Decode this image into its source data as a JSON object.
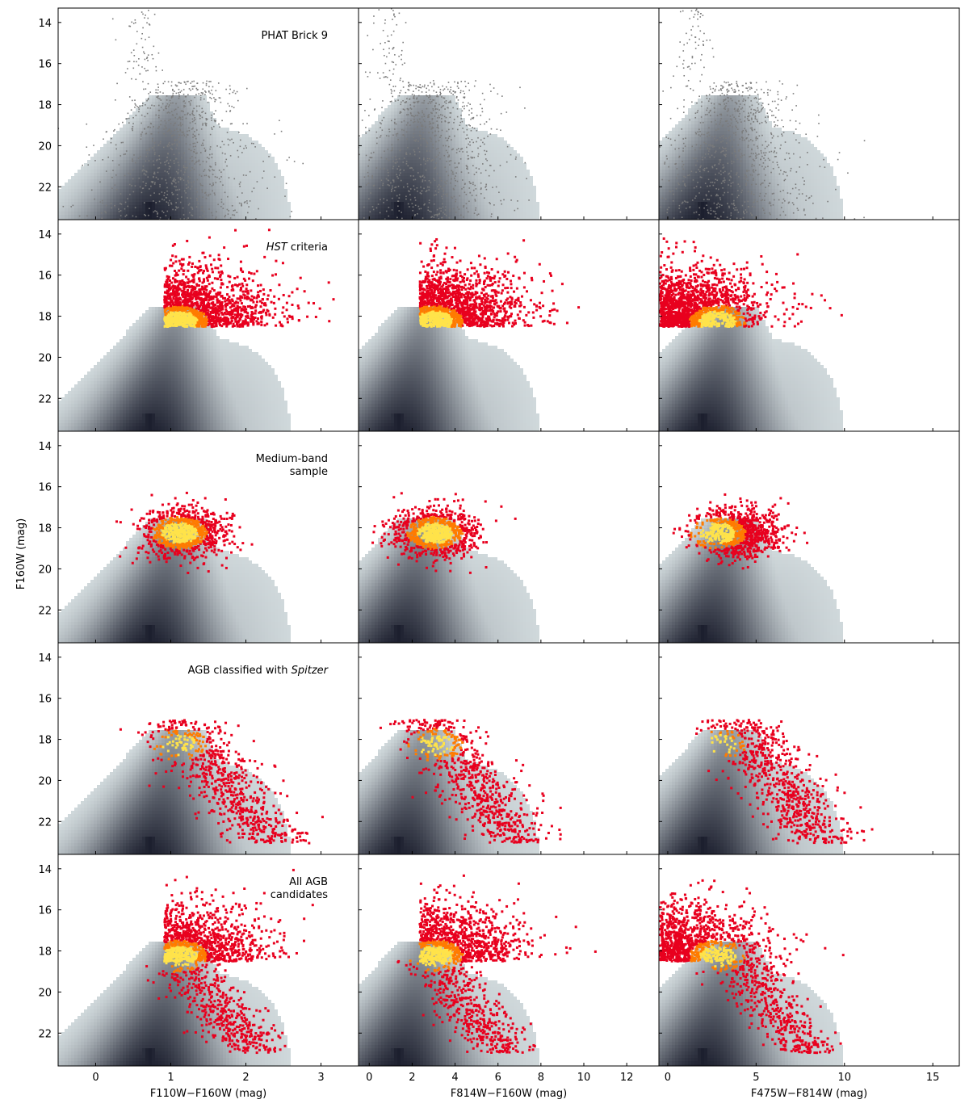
{
  "figure": {
    "ylabel": "F160W (mag)"
  },
  "y_axis": {
    "range": [
      23.6,
      13.3
    ],
    "inverted": true,
    "ticks": [
      14,
      16,
      18,
      20,
      22
    ],
    "tick_labels": [
      "14",
      "16",
      "18",
      "20",
      "22"
    ]
  },
  "columns": [
    {
      "xlabel": "F110W−F160W (mag)",
      "xlim": [
        -0.5,
        3.5
      ],
      "ticks": [
        0,
        1,
        2,
        3
      ],
      "tick_labels": [
        "0",
        "1",
        "2",
        "3"
      ],
      "density_mode": 0.7,
      "density_slope": 0.08,
      "red_giant_branch_tip_mag": 18.5
    },
    {
      "xlabel": "F814W−F160W (mag)",
      "xlim": [
        -0.5,
        13.5
      ],
      "ticks": [
        0,
        2,
        4,
        6,
        8,
        10,
        12
      ],
      "tick_labels": [
        "0",
        "2",
        "4",
        "6",
        "8",
        "10",
        "12"
      ],
      "density_mode": 1.3,
      "density_slope": 0.28,
      "red_giant_branch_tip_mag": 18.5
    },
    {
      "xlabel": "F475W−F814W (mag)",
      "xlim": [
        -0.5,
        16.5
      ],
      "ticks": [
        0,
        5,
        10,
        15
      ],
      "tick_labels": [
        "0",
        "5",
        "10",
        "15"
      ],
      "density_mode": 1.9,
      "density_slope": 0.42,
      "red_giant_branch_tip_mag": 18.5
    }
  ],
  "rows": [
    {
      "label_lines": [
        "PHAT  Brick 9"
      ],
      "label_italic_word": ""
    },
    {
      "label_lines": [
        "HST  criteria"
      ],
      "label_italic_word": "HST"
    },
    {
      "label_lines": [
        "Medium-band",
        "sample"
      ],
      "label_italic_word": ""
    },
    {
      "label_lines": [
        "AGB classified with Spitzer"
      ],
      "label_italic_word": "Spitzer"
    },
    {
      "label_lines": [
        "All AGB",
        "candidates"
      ],
      "label_italic_word": ""
    }
  ],
  "chart_data": [
    {
      "type": "heatmap",
      "title": "",
      "description_row": "PHAT Brick 9",
      "series": [
        {
          "role": "background density (grey-blue)"
        },
        {
          "role": "sparse stars (grey points)",
          "color": "#7a7a7a"
        }
      ]
    },
    {
      "type": "heatmap",
      "row_label": "HST criteria",
      "color_map": [
        "#e60000",
        "#ff6a00",
        "#ffd200",
        "#fffdd0"
      ],
      "cut_mag": 18.45,
      "color_cut_col1": 0.9,
      "color_cut_col2": 2.3
    },
    {
      "type": "heatmap",
      "row_label": "Medium-band sample"
    },
    {
      "type": "heatmap",
      "row_label": "AGB classified with Spitzer"
    },
    {
      "type": "heatmap",
      "row_label": "All AGB candidates"
    }
  ],
  "colors": {
    "density_dark": "#1c1f2e",
    "density_light": "#dbe4e6",
    "red": "#e8001e",
    "orange": "#ff7b00",
    "yellow": "#ffe34a",
    "grey_points": "#7b7b7b"
  }
}
